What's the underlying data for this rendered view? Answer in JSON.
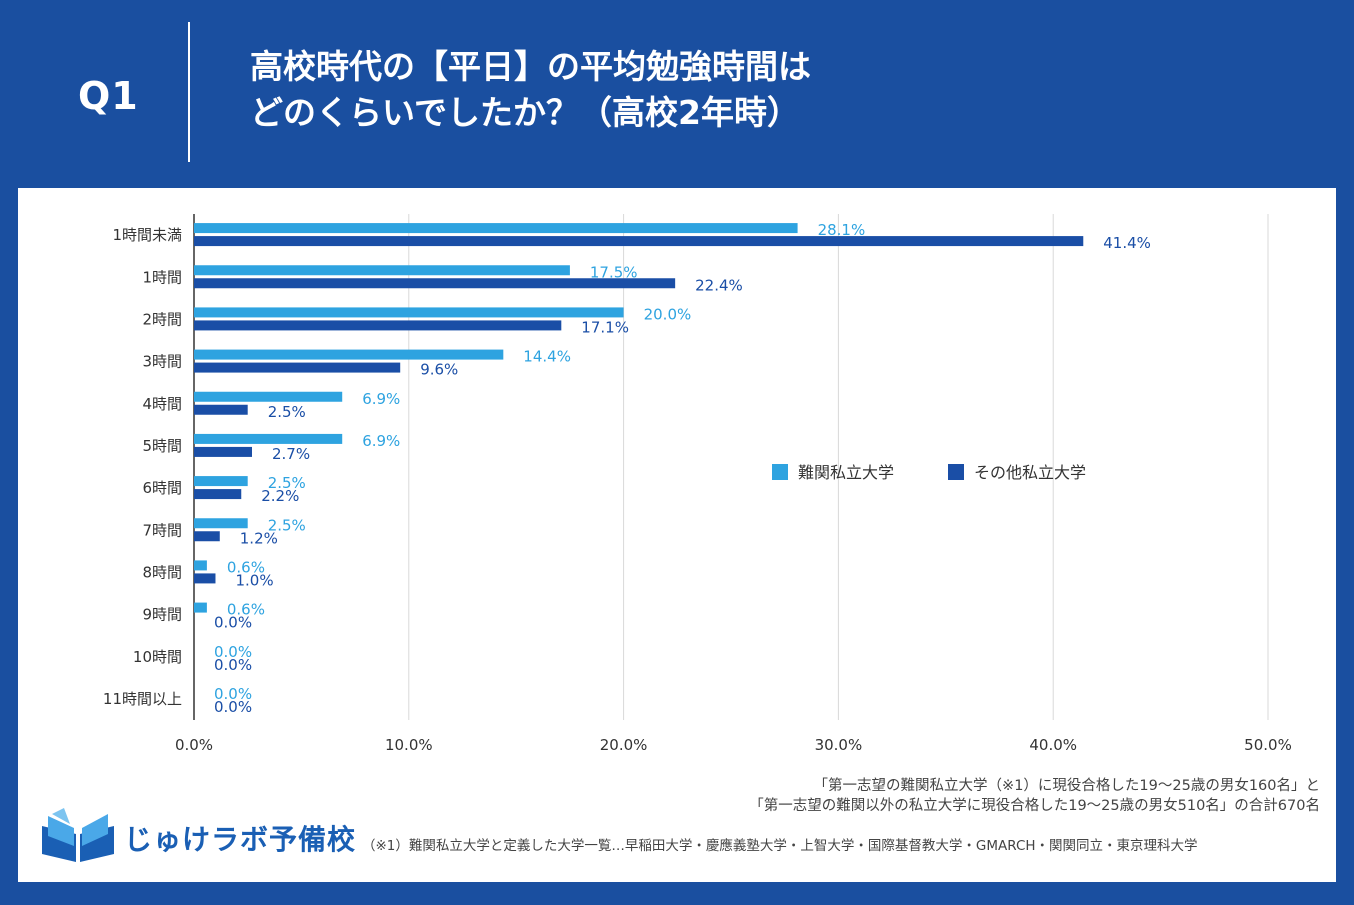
{
  "header": {
    "q_label": "Q1",
    "title_line1": "高校時代の【平日】の平均勉強時間は",
    "title_line2": "どのくらいでしたか？（高校2年時）"
  },
  "colors": {
    "background": "#1a4fa0",
    "series1": "#2ea3e0",
    "series2": "#1a4ea6",
    "grid": "#d9d9d9",
    "axis": "#333333"
  },
  "chart_data": {
    "type": "bar",
    "orientation": "horizontal",
    "categories": [
      "1時間未満",
      "1時間",
      "2時間",
      "3時間",
      "4時間",
      "5時間",
      "6時間",
      "7時間",
      "8時間",
      "9時間",
      "10時間",
      "11時間以上"
    ],
    "series": [
      {
        "name": "難関私立大学",
        "values": [
          28.1,
          17.5,
          20.0,
          14.4,
          6.9,
          6.9,
          2.5,
          2.5,
          0.6,
          0.6,
          0.0,
          0.0
        ],
        "labels": [
          "28.1%",
          "17.5%",
          "20.0%",
          "14.4%",
          "6.9%",
          "6.9%",
          "2.5%",
          "2.5%",
          "0.6%",
          "0.6%",
          "0.0%",
          "0.0%"
        ]
      },
      {
        "name": "その他私立大学",
        "values": [
          41.4,
          22.4,
          17.1,
          9.6,
          2.5,
          2.7,
          2.2,
          1.2,
          1.0,
          0.0,
          0.0,
          0.0
        ],
        "labels": [
          "41.4%",
          "22.4%",
          "17.1%",
          "9.6%",
          "2.5%",
          "2.7%",
          "2.2%",
          "1.2%",
          "1.0%",
          "0.0%",
          "0.0%",
          "0.0%"
        ]
      }
    ],
    "xlim": [
      0,
      50
    ],
    "xticks": [
      "0.0%",
      "10.0%",
      "20.0%",
      "30.0%",
      "40.0%",
      "50.0%"
    ],
    "grid": true,
    "legend_position": "right"
  },
  "notes": {
    "line1": "「第一志望の難関私立大学（※1）に現役合格した19～25歳の男女160名」と",
    "line2": "「第一志望の難関以外の私立大学に現役合格した19～25歳の男女510名」の合計670名",
    "footnote": "（※1）難関私立大学と定義した大学一覧…早稲田大学・慶應義塾大学・上智大学・国際基督教大学・GMARCH・関関同立・東京理科大学"
  },
  "logo": {
    "text": "じゅけラボ予備校",
    "icon": "book-icon"
  }
}
